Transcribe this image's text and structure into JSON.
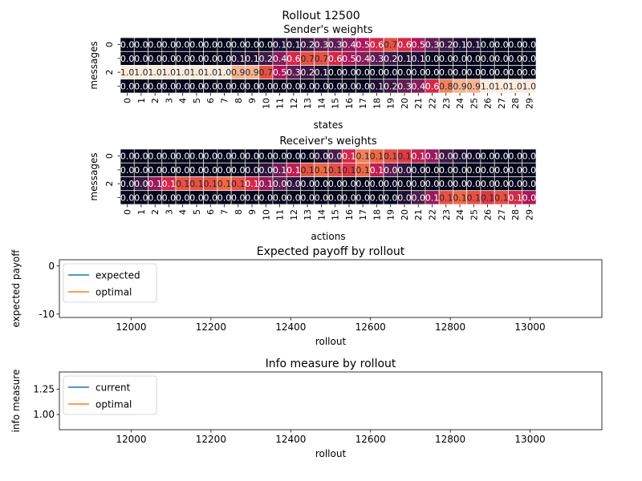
{
  "suptitle": "Rollout 12500",
  "chart_data": [
    {
      "type": "heatmap",
      "title": "Sender's weights",
      "xlabel": "states",
      "ylabel": "messages",
      "x_categories": [
        "0",
        "1",
        "2",
        "3",
        "4",
        "5",
        "6",
        "7",
        "8",
        "9",
        "10",
        "11",
        "12",
        "13",
        "14",
        "15",
        "16",
        "17",
        "18",
        "19",
        "20",
        "21",
        "22",
        "23",
        "24",
        "25",
        "26",
        "27",
        "28",
        "29"
      ],
      "y_categories": [
        "0",
        "1",
        "2",
        "3"
      ],
      "y_tick_labels_shown": [
        "0",
        "2"
      ],
      "value_range": [
        0,
        1
      ],
      "colormap": "rocket",
      "values": [
        [
          0.0,
          0.0,
          0.0,
          0.0,
          0.0,
          0.0,
          0.0,
          0.0,
          0.0,
          0.0,
          0.0,
          0.1,
          0.1,
          0.2,
          0.3,
          0.3,
          0.4,
          0.5,
          0.6,
          0.7,
          0.6,
          0.5,
          0.3,
          0.2,
          0.1,
          0.1,
          0.0,
          0.0,
          0.0,
          0.0
        ],
        [
          0.0,
          0.0,
          0.0,
          0.0,
          0.0,
          0.0,
          0.0,
          0.0,
          0.1,
          0.1,
          0.2,
          0.4,
          0.6,
          0.7,
          0.7,
          0.6,
          0.5,
          0.4,
          0.3,
          0.2,
          0.1,
          0.1,
          0.0,
          0.0,
          0.0,
          0.0,
          0.0,
          0.0,
          0.0,
          0.0
        ],
        [
          1.0,
          1.0,
          1.0,
          1.0,
          1.0,
          1.0,
          1.0,
          1.0,
          0.9,
          0.9,
          0.7,
          0.5,
          0.3,
          0.2,
          0.1,
          0.0,
          0.0,
          0.0,
          0.0,
          0.0,
          0.0,
          0.0,
          0.0,
          0.0,
          0.0,
          0.0,
          0.0,
          0.0,
          0.0,
          0.0
        ],
        [
          0.0,
          0.0,
          0.0,
          0.0,
          0.0,
          0.0,
          0.0,
          0.0,
          0.0,
          0.0,
          0.0,
          0.0,
          0.0,
          0.0,
          0.0,
          0.0,
          0.0,
          0.0,
          0.1,
          0.2,
          0.3,
          0.4,
          0.6,
          0.8,
          0.9,
          0.9,
          1.0,
          1.0,
          1.0,
          1.0
        ]
      ]
    },
    {
      "type": "heatmap",
      "title": "Receiver's weights",
      "xlabel": "actions",
      "ylabel": "messages",
      "x_categories": [
        "0",
        "1",
        "2",
        "3",
        "4",
        "5",
        "6",
        "7",
        "8",
        "9",
        "10",
        "11",
        "12",
        "13",
        "14",
        "15",
        "16",
        "17",
        "18",
        "19",
        "20",
        "21",
        "22",
        "23",
        "24",
        "25",
        "26",
        "27",
        "28",
        "29"
      ],
      "y_categories": [
        "0",
        "1",
        "2",
        "3"
      ],
      "y_tick_labels_shown": [
        "0",
        "2"
      ],
      "value_range": [
        0,
        0.2
      ],
      "colormap": "rocket",
      "values": [
        [
          0.0,
          0.0,
          0.0,
          0.0,
          0.0,
          0.0,
          0.0,
          0.0,
          0.0,
          0.0,
          0.0,
          0.0,
          0.0,
          0.0,
          0.0,
          0.0,
          0.1,
          0.1,
          0.1,
          0.1,
          0.1,
          0.1,
          0.1,
          0.0,
          0.0,
          0.0,
          0.0,
          0.0,
          0.0,
          0.0
        ],
        [
          0.0,
          0.0,
          0.0,
          0.0,
          0.0,
          0.0,
          0.0,
          0.0,
          0.0,
          0.0,
          0.0,
          0.1,
          0.1,
          0.1,
          0.1,
          0.1,
          0.1,
          0.1,
          0.1,
          0.0,
          0.0,
          0.0,
          0.0,
          0.0,
          0.0,
          0.0,
          0.0,
          0.0,
          0.0,
          0.0
        ],
        [
          0.0,
          0.0,
          0.1,
          0.1,
          0.1,
          0.1,
          0.1,
          0.1,
          0.1,
          0.1,
          0.1,
          0.0,
          0.0,
          0.0,
          0.0,
          0.0,
          0.0,
          0.0,
          0.0,
          0.0,
          0.0,
          0.0,
          0.0,
          0.0,
          0.0,
          0.0,
          0.0,
          0.0,
          0.0,
          0.0
        ],
        [
          0.0,
          0.0,
          0.0,
          0.0,
          0.0,
          0.0,
          0.0,
          0.0,
          0.0,
          0.0,
          0.0,
          0.0,
          0.0,
          0.0,
          0.0,
          0.0,
          0.0,
          0.0,
          0.0,
          0.0,
          0.0,
          0.0,
          0.1,
          0.1,
          0.1,
          0.1,
          0.1,
          0.1,
          0.1,
          0.0
        ]
      ],
      "shade": [
        [
          0.0,
          0.0,
          0.0,
          0.0,
          0.0,
          0.0,
          0.0,
          0.0,
          0.0,
          0.0,
          0.0,
          0.0,
          0.0,
          0.0,
          0.1,
          0.25,
          0.6,
          0.8,
          0.75,
          0.7,
          0.65,
          0.55,
          0.45,
          0.2,
          0.1,
          0.05,
          0.0,
          0.0,
          0.0,
          0.0
        ],
        [
          0.0,
          0.0,
          0.0,
          0.0,
          0.0,
          0.0,
          0.0,
          0.0,
          0.0,
          0.05,
          0.15,
          0.35,
          0.55,
          0.7,
          0.75,
          0.7,
          0.65,
          0.75,
          0.55,
          0.3,
          0.15,
          0.05,
          0.0,
          0.0,
          0.0,
          0.0,
          0.0,
          0.0,
          0.0,
          0.0
        ],
        [
          0.05,
          0.2,
          0.45,
          0.6,
          0.7,
          0.7,
          0.7,
          0.75,
          0.7,
          0.6,
          0.45,
          0.3,
          0.15,
          0.05,
          0.0,
          0.0,
          0.0,
          0.0,
          0.0,
          0.0,
          0.0,
          0.0,
          0.0,
          0.0,
          0.0,
          0.0,
          0.0,
          0.0,
          0.0,
          0.0
        ],
        [
          0.0,
          0.0,
          0.0,
          0.0,
          0.0,
          0.0,
          0.0,
          0.0,
          0.0,
          0.0,
          0.0,
          0.0,
          0.0,
          0.0,
          0.0,
          0.0,
          0.0,
          0.0,
          0.0,
          0.0,
          0.1,
          0.25,
          0.45,
          0.7,
          0.75,
          0.7,
          0.65,
          0.7,
          0.6,
          0.5
        ]
      ]
    },
    {
      "type": "line",
      "title": "Expected payoff by rollout",
      "xlabel": "rollout",
      "ylabel": "expected payoff",
      "xlim": [
        11820,
        13180
      ],
      "ylim": [
        -10.7,
        1.3
      ],
      "x_ticks": [
        12000,
        12200,
        12400,
        12600,
        12800,
        13000
      ],
      "y_ticks": [
        0,
        -10
      ],
      "legend_position": "upper-left",
      "series": [
        {
          "name": "expected",
          "color": "#1f77b4",
          "x": [],
          "y": []
        },
        {
          "name": "optimal",
          "color": "#ff7f0e",
          "x": [],
          "y": []
        }
      ]
    },
    {
      "type": "line",
      "title": "Info measure by rollout",
      "xlabel": "rollout",
      "ylabel": "info measure",
      "xlim": [
        11820,
        13180
      ],
      "ylim": [
        0.85,
        1.42
      ],
      "x_ticks": [
        12000,
        12200,
        12400,
        12600,
        12800,
        13000
      ],
      "y_ticks": [
        1.0,
        1.25
      ],
      "y_tick_labels": [
        "1.00",
        "1.25"
      ],
      "legend_position": "upper-left",
      "series": [
        {
          "name": "current",
          "color": "#1f77b4",
          "x": [],
          "y": []
        },
        {
          "name": "optimal",
          "color": "#ff7f0e",
          "x": [],
          "y": []
        }
      ]
    }
  ]
}
